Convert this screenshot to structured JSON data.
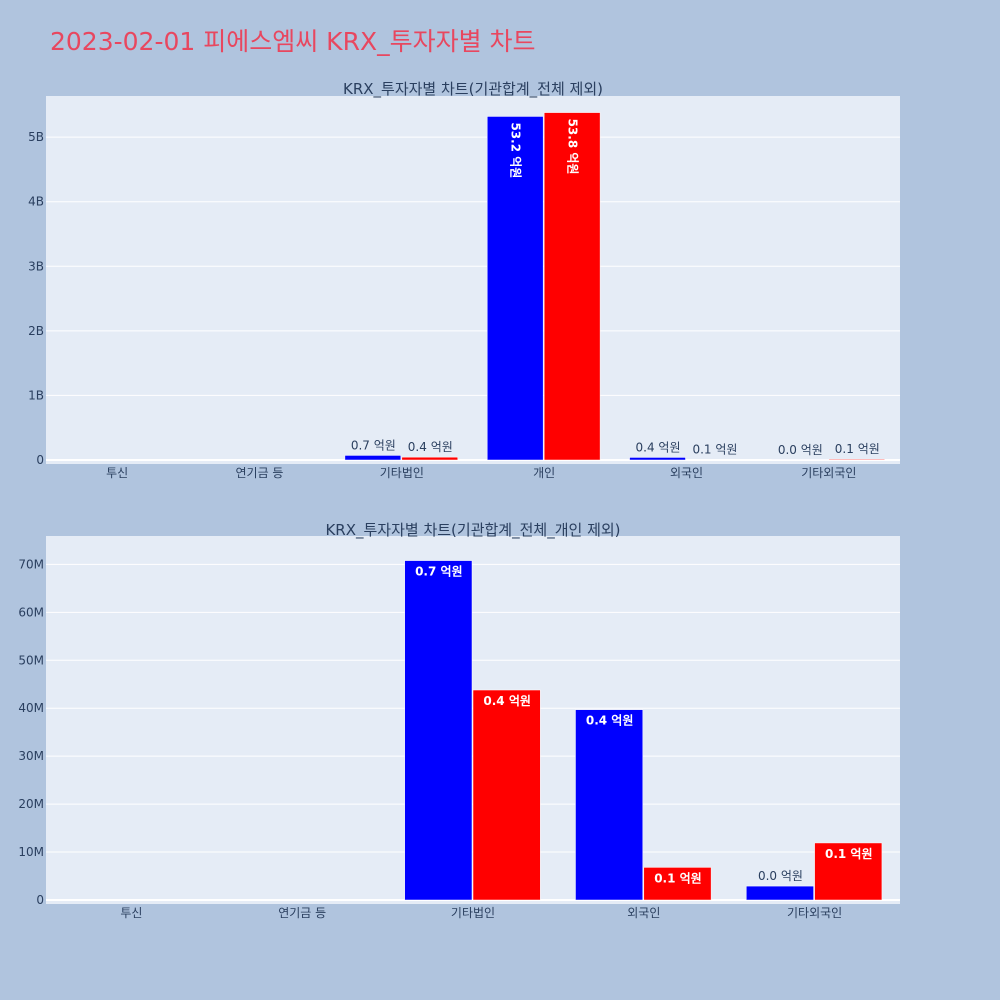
{
  "page_title": "2023-02-01 피에스엠씨 KRX_투자자별 차트",
  "colors": {
    "buy": "#0000ff",
    "sell": "#ff0000",
    "plot_bg": "#e5ecf6",
    "page_bg": "#b0c4de",
    "title": "#e8475f"
  },
  "chart_data": [
    {
      "type": "bar",
      "title": "KRX_투자자별 차트(기관합계_전체 제외)",
      "categories": [
        "투신",
        "연기금 등",
        "기타법인",
        "개인",
        "외국인",
        "기타외국인"
      ],
      "ylim": [
        0,
        5600000000
      ],
      "yticks": [
        0,
        1000000000,
        2000000000,
        3000000000,
        4000000000,
        5000000000
      ],
      "ytick_labels": [
        "0",
        "1B",
        "2B",
        "3B",
        "4B",
        "5B"
      ],
      "series": [
        {
          "color": "#0000ff",
          "values": [
            0,
            0,
            70800000,
            5320000000,
            39700000,
            2900000
          ],
          "labels": [
            "",
            "",
            "0.7 억원",
            "53.2 억원",
            "0.4 억원",
            "0.0 억원"
          ]
        },
        {
          "color": "#ff0000",
          "values": [
            0,
            0,
            43800000,
            5380000000,
            6800000,
            11900000
          ],
          "labels": [
            "",
            "",
            "0.4 억원",
            "53.8 억원",
            "0.1 억원",
            "0.1 억원"
          ]
        }
      ],
      "grid": true
    },
    {
      "type": "bar",
      "title": "KRX_투자자별 차트(기관합계_전체_개인 제외)",
      "categories": [
        "투신",
        "연기금 등",
        "기타법인",
        "외국인",
        "기타외국인"
      ],
      "ylim": [
        0,
        75000000
      ],
      "yticks": [
        0,
        10000000,
        20000000,
        30000000,
        40000000,
        50000000,
        60000000,
        70000000
      ],
      "ytick_labels": [
        "0",
        "10M",
        "20M",
        "30M",
        "40M",
        "50M",
        "60M",
        "70M"
      ],
      "series": [
        {
          "color": "#0000ff",
          "values": [
            0,
            0,
            70800000,
            39700000,
            2900000
          ],
          "labels": [
            "",
            "",
            "0.7 억원",
            "0.4 억원",
            "0.0 억원"
          ]
        },
        {
          "color": "#ff0000",
          "values": [
            0,
            0,
            43800000,
            6800000,
            11900000
          ],
          "labels": [
            "",
            "",
            "0.4 억원",
            "0.1 억원",
            "0.1 억원"
          ]
        }
      ],
      "grid": true
    }
  ]
}
